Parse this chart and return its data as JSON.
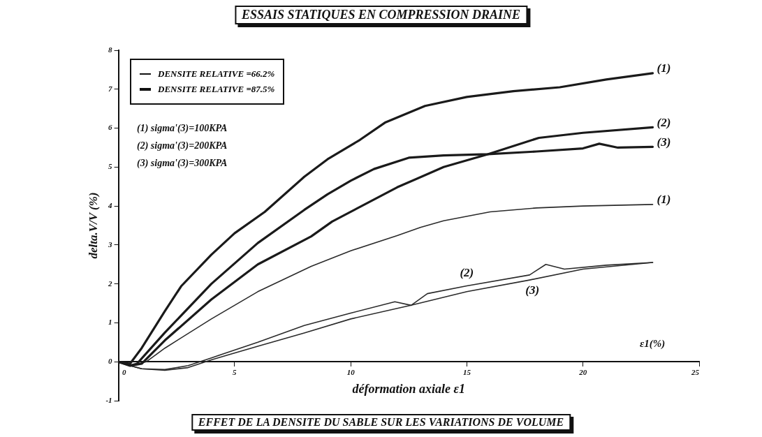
{
  "chart_data": {
    "type": "line",
    "title": "ESSAIS STATIQUES EN COMPRESSION DRAINE",
    "xlabel": "déformation axiale ε1",
    "ylabel": "delta.V/V (%)",
    "xlim": [
      0,
      25
    ],
    "xticks": [
      0,
      5,
      10,
      15,
      20,
      25
    ],
    "ylim": [
      -1,
      8
    ],
    "yticks": [
      -1,
      0,
      1,
      2,
      3,
      4,
      5,
      6,
      7,
      8
    ],
    "grid": false,
    "legend": false,
    "marker": "none",
    "line_style": "solid",
    "annotations": [
      "DENSITE RELATIVE =66.2%",
      "DENSITE RELATIVE =87.5%",
      "(1) sigma'(3)=100KPA",
      "(2) sigma'(3)=200KPA",
      "(3) sigma'(3)=300KPA",
      "ε1(%)",
      "EFFET DE LA DENSITE DU SABLE SUR LES VARIATIONS DE VOLUME"
    ],
    "series": [
      {
        "name": "(1)",
        "color": "#1a1a1a",
        "x": [
          0,
          0.5,
          1,
          2,
          2.7,
          4,
          5,
          6.3,
          8,
          9,
          10.4,
          11.5,
          13.2,
          15,
          17,
          19,
          21,
          23
        ],
        "values": [
          0,
          -0.05,
          0.35,
          1.3,
          1.94,
          2.75,
          3.3,
          3.85,
          4.75,
          5.2,
          5.7,
          6.15,
          6.57,
          6.8,
          6.95,
          7.05,
          7.25,
          7.41
        ]
      },
      {
        "name": "(2)",
        "color": "#1a1a1a",
        "x": [
          0,
          0.5,
          1,
          2,
          4,
          6,
          8.3,
          9.2,
          12,
          14,
          15.9,
          18.1,
          20,
          23
        ],
        "values": [
          0,
          -0.1,
          -0.05,
          0.55,
          1.6,
          2.5,
          3.22,
          3.6,
          4.48,
          5.0,
          5.33,
          5.75,
          5.88,
          6.02
        ]
      },
      {
        "name": "(3)",
        "color": "#1a1a1a",
        "x": [
          0,
          0.5,
          0.8,
          2,
          4,
          6,
          8,
          9,
          10,
          11,
          12.5,
          14,
          15.9,
          18,
          20,
          20.7,
          21.5,
          23
        ],
        "values": [
          0,
          -0.1,
          -0.05,
          0.75,
          2.0,
          3.05,
          3.9,
          4.3,
          4.65,
          4.95,
          5.24,
          5.3,
          5.33,
          5.4,
          5.48,
          5.6,
          5.5,
          5.52
        ]
      },
      {
        "name": "(1)",
        "color": "#2a2a2a",
        "x": [
          0,
          0.5,
          1.2,
          2,
          4,
          6,
          8.3,
          10,
          12,
          13,
          14,
          16,
          18,
          20,
          23
        ],
        "values": [
          0,
          -0.1,
          0,
          0.35,
          1.1,
          1.8,
          2.45,
          2.85,
          3.24,
          3.45,
          3.62,
          3.85,
          3.95,
          4.0,
          4.04
        ]
      },
      {
        "name": "(2)",
        "color": "#2a2a2a",
        "x": [
          0,
          0.5,
          1,
          2,
          3,
          4,
          6,
          8,
          10,
          11.9,
          12.6,
          13.3,
          15,
          17.7,
          18.4,
          19.2,
          21,
          23
        ],
        "values": [
          0,
          -0.1,
          -0.18,
          -0.2,
          -0.1,
          0.1,
          0.5,
          0.93,
          1.25,
          1.54,
          1.45,
          1.75,
          1.95,
          2.23,
          2.5,
          2.38,
          2.48,
          2.55
        ]
      },
      {
        "name": "(3)",
        "color": "#2a2a2a",
        "x": [
          0,
          0.5,
          1,
          2,
          3,
          4,
          6,
          8,
          10,
          12.6,
          15,
          17.7,
          20,
          23
        ],
        "values": [
          0,
          -0.1,
          -0.18,
          -0.22,
          -0.15,
          0.05,
          0.4,
          0.74,
          1.1,
          1.45,
          1.8,
          2.1,
          2.38,
          2.55
        ]
      }
    ]
  }
}
